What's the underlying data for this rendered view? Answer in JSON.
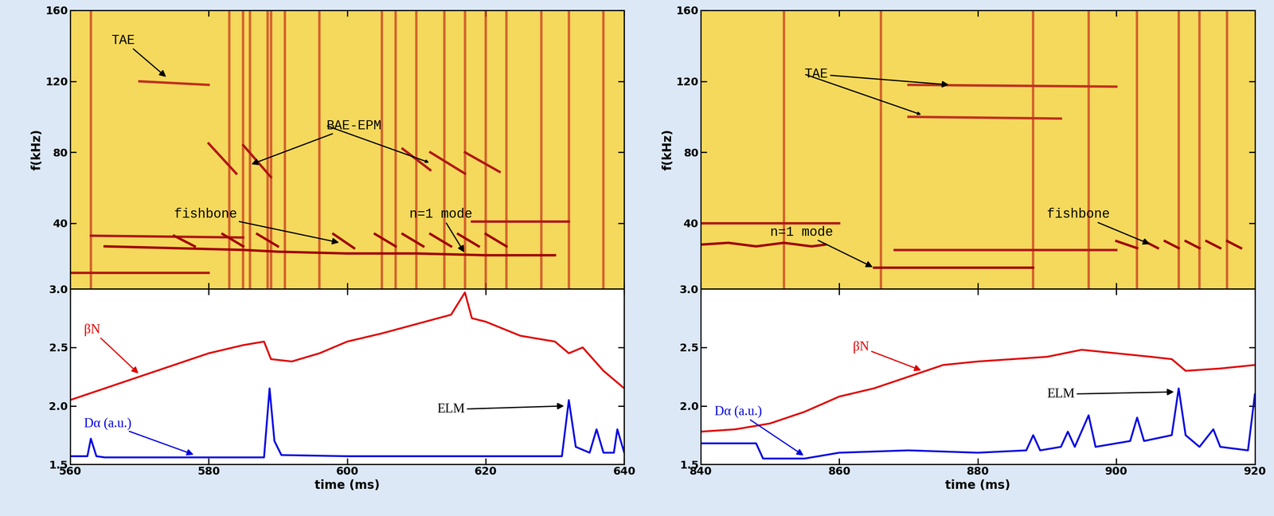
{
  "chart_data": [
    {
      "type": "spectrogram",
      "ylabel": "f(kHz)",
      "xlim": [
        560,
        640
      ],
      "xticks": [
        560,
        580,
        600,
        620,
        640
      ],
      "ylim": [
        3,
        160
      ],
      "yticks": [
        {
          "value": 3,
          "label": "3.0"
        },
        40,
        80,
        120,
        160
      ],
      "tick_labels": "y",
      "bursts": [
        563,
        583,
        585,
        586,
        588.5,
        589,
        591,
        596,
        605,
        607,
        610,
        614,
        617,
        620,
        623,
        628,
        632,
        637
      ],
      "series": [
        {
          "color": "#a00000",
          "x": [
            565,
            575,
            585,
            590,
            600,
            610,
            620,
            630
          ],
          "values": [
            27,
            26,
            25,
            24,
            23,
            23,
            22,
            22
          ]
        },
        {
          "color": "#b01818",
          "x": [
            563,
            585
          ],
          "values": [
            33,
            32
          ]
        },
        {
          "color": "#b01818",
          "x": [
            560,
            580
          ],
          "values": [
            12,
            12
          ]
        },
        {
          "color": "#b01818",
          "x": [
            618,
            632
          ],
          "values": [
            41,
            41
          ]
        },
        {
          "color": "#a00000",
          "x": [
            575,
            578,
            578.5,
            582,
            585,
            585.5,
            587,
            590,
            590.5,
            598,
            601,
            601.5,
            604,
            607,
            607.5,
            608,
            611,
            611.5,
            612,
            615,
            615.5,
            616,
            619,
            619.5,
            620,
            623
          ],
          "values": [
            33,
            27,
            null,
            34,
            27,
            null,
            34,
            27,
            null,
            34,
            26,
            null,
            34,
            27,
            null,
            34,
            27,
            null,
            34,
            27,
            null,
            34,
            27,
            null,
            34,
            27
          ]
        },
        {
          "color": "#b01818",
          "x": [
            580,
            584,
            584.5,
            585,
            589,
            589.5,
            608,
            612,
            612.5,
            612,
            617,
            617.5,
            617,
            622
          ],
          "values": [
            85,
            68,
            null,
            84,
            66,
            null,
            82,
            70,
            null,
            80,
            68,
            null,
            80,
            69
          ]
        },
        {
          "color": "#c03020",
          "x": [
            570,
            580
          ],
          "values": [
            120,
            118
          ]
        }
      ],
      "annotations": [
        {
          "text": "TAE",
          "text_x": 566,
          "text_y": 143,
          "points": [
            [
              574,
              122
            ]
          ]
        },
        {
          "text": "BAE-EPM",
          "text_x": 597,
          "text_y": 95,
          "points": [
            [
              586,
              73
            ],
            [
              612,
              74
            ]
          ]
        },
        {
          "text": "fishbone",
          "text_x": 575,
          "text_y": 45,
          "points": [
            [
              599,
              29
            ]
          ]
        },
        {
          "text": "n=1 mode",
          "text_x": 609,
          "text_y": 45,
          "points": [
            [
              617,
              23
            ]
          ]
        }
      ]
    },
    {
      "type": "line",
      "xlabel": "time (ms)",
      "xlim": [
        560,
        640
      ],
      "xticks": [
        560,
        580,
        600,
        620,
        640
      ],
      "ylim": [
        1.5,
        3.0
      ],
      "yticks": [
        1.5,
        2.0,
        2.5
      ],
      "series": [
        {
          "color": "#e00000",
          "x": [
            560,
            565,
            570,
            575,
            580,
            585,
            588,
            589,
            592,
            596,
            600,
            605,
            610,
            615,
            617,
            618,
            620,
            625,
            630,
            632,
            634,
            637,
            640
          ],
          "values": [
            2.05,
            2.15,
            2.25,
            2.35,
            2.45,
            2.52,
            2.55,
            2.4,
            2.38,
            2.45,
            2.55,
            2.62,
            2.7,
            2.78,
            2.97,
            2.75,
            2.72,
            2.6,
            2.55,
            2.45,
            2.5,
            2.3,
            2.15
          ]
        },
        {
          "color": "#0000e0",
          "x": [
            560,
            562.5,
            563,
            563.8,
            565,
            588,
            588.8,
            589.5,
            590.5,
            600,
            620,
            631,
            632,
            633,
            635,
            636,
            637,
            638.5,
            639,
            640
          ],
          "values": [
            1.57,
            1.57,
            1.72,
            1.57,
            1.56,
            1.56,
            2.15,
            1.7,
            1.58,
            1.57,
            1.57,
            1.57,
            2.05,
            1.65,
            1.6,
            1.8,
            1.6,
            1.6,
            1.8,
            1.6
          ]
        }
      ],
      "annotations": [
        {
          "text": "βN",
          "text_x": 562,
          "text_y": 2.65,
          "color": "#e00000",
          "points": [
            [
              570,
              2.27
            ]
          ]
        },
        {
          "text": "Dα (a.u.)",
          "text_x": 562,
          "text_y": 1.85,
          "color": "#0000e0",
          "points": [
            [
              578,
              1.58
            ]
          ]
        },
        {
          "text": "ELM",
          "text_x": 613,
          "text_y": 1.97,
          "points": [
            [
              631.5,
              2.0
            ]
          ]
        }
      ]
    },
    {
      "type": "spectrogram",
      "ylabel": "f(kHz)",
      "xlim": [
        840,
        920
      ],
      "xticks": [
        840,
        860,
        880,
        900,
        920
      ],
      "ylim": [
        3,
        160
      ],
      "yticks": [
        {
          "value": 3,
          "label": "3.0"
        },
        40,
        80,
        120,
        160
      ],
      "tick_labels": "y",
      "bursts": [
        852,
        866,
        888,
        896,
        903,
        909,
        912,
        916
      ],
      "series": [
        {
          "color": "#a00000",
          "x": [
            840,
            844,
            848,
            852,
            856,
            858
          ],
          "values": [
            28,
            29,
            27,
            29,
            27,
            28
          ]
        },
        {
          "color": "#b01818",
          "x": [
            840,
            860
          ],
          "values": [
            40,
            40
          ]
        },
        {
          "color": "#a00000",
          "x": [
            865,
            888
          ],
          "values": [
            15,
            15
          ]
        },
        {
          "color": "#b01818",
          "x": [
            868,
            900
          ],
          "values": [
            25,
            25
          ]
        },
        {
          "color": "#a00000",
          "x": [
            900,
            903,
            903.5,
            904,
            906,
            906.5,
            907,
            909,
            909.5,
            910,
            912,
            912.5,
            913,
            915,
            915.5,
            916,
            918
          ],
          "values": [
            30,
            26,
            null,
            30,
            26,
            null,
            30,
            26,
            null,
            30,
            26,
            null,
            30,
            26,
            null,
            30,
            26
          ]
        },
        {
          "color": "#c03020",
          "x": [
            870,
            900
          ],
          "values": [
            118,
            117
          ]
        },
        {
          "color": "#c03020",
          "x": [
            870,
            892
          ],
          "values": [
            100,
            99
          ]
        }
      ],
      "annotations": [
        {
          "text": "TAE",
          "text_x": 855,
          "text_y": 124,
          "points": [
            [
              876,
              118
            ],
            [
              872,
              101
            ]
          ]
        },
        {
          "text": "fishbone",
          "text_x": 890,
          "text_y": 45,
          "points": [
            [
              905,
              28
            ]
          ]
        },
        {
          "text": "n=1 mode",
          "text_x": 850,
          "text_y": 35,
          "points": [
            [
              865,
              15
            ]
          ]
        }
      ]
    },
    {
      "type": "line",
      "xlabel": "time (ms)",
      "xlim": [
        840,
        920
      ],
      "xticks": [
        840,
        860,
        880,
        900,
        920
      ],
      "ylim": [
        1.5,
        3.0
      ],
      "yticks": [
        1.5,
        2.0,
        2.5
      ],
      "series": [
        {
          "color": "#e00000",
          "x": [
            840,
            845,
            850,
            855,
            860,
            865,
            870,
            875,
            880,
            885,
            890,
            895,
            900,
            905,
            908,
            910,
            915,
            920
          ],
          "values": [
            1.78,
            1.8,
            1.85,
            1.95,
            2.08,
            2.15,
            2.25,
            2.35,
            2.38,
            2.4,
            2.42,
            2.48,
            2.45,
            2.42,
            2.4,
            2.3,
            2.32,
            2.35
          ]
        },
        {
          "color": "#0000e0",
          "x": [
            840,
            848,
            849,
            855,
            860,
            870,
            880,
            887,
            888,
            889,
            892,
            893,
            894,
            896,
            897,
            902,
            903,
            904,
            908,
            909,
            910,
            912,
            914,
            915,
            919,
            920
          ],
          "values": [
            1.68,
            1.68,
            1.55,
            1.55,
            1.6,
            1.62,
            1.6,
            1.62,
            1.75,
            1.62,
            1.65,
            1.78,
            1.65,
            1.92,
            1.65,
            1.7,
            1.9,
            1.7,
            1.75,
            2.15,
            1.75,
            1.65,
            1.8,
            1.65,
            1.62,
            2.1
          ]
        }
      ],
      "annotations": [
        {
          "text": "βN",
          "text_x": 862,
          "text_y": 2.5,
          "color": "#e00000",
          "points": [
            [
              872,
              2.3
            ]
          ]
        },
        {
          "text": "Dα (a.u.)",
          "text_x": 842,
          "text_y": 1.95,
          "color": "#0000e0",
          "points": [
            [
              855,
              1.57
            ]
          ]
        },
        {
          "text": "ELM",
          "text_x": 890,
          "text_y": 2.1,
          "points": [
            [
              908.5,
              2.12
            ]
          ]
        }
      ]
    }
  ]
}
